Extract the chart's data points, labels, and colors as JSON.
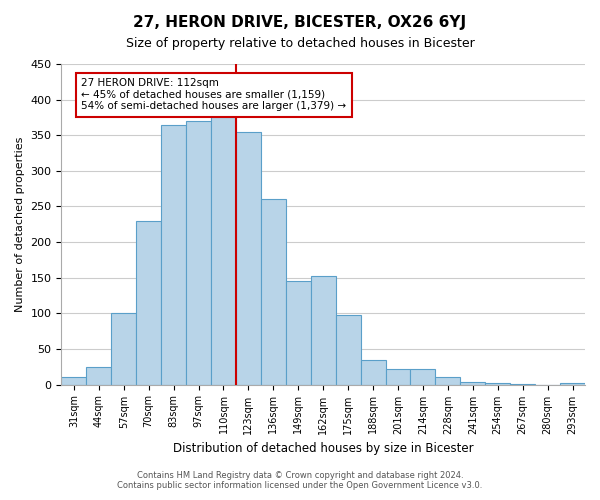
{
  "title": "27, HERON DRIVE, BICESTER, OX26 6YJ",
  "subtitle": "Size of property relative to detached houses in Bicester",
  "xlabel": "Distribution of detached houses by size in Bicester",
  "ylabel": "Number of detached properties",
  "footer_line1": "Contains HM Land Registry data © Crown copyright and database right 2024.",
  "footer_line2": "Contains public sector information licensed under the Open Government Licence v3.0.",
  "bin_labels": [
    "31sqm",
    "44sqm",
    "57sqm",
    "70sqm",
    "83sqm",
    "97sqm",
    "110sqm",
    "123sqm",
    "136sqm",
    "149sqm",
    "162sqm",
    "175sqm",
    "188sqm",
    "201sqm",
    "214sqm",
    "228sqm",
    "241sqm",
    "254sqm",
    "267sqm",
    "280sqm",
    "293sqm"
  ],
  "bar_values": [
    10,
    25,
    100,
    230,
    365,
    370,
    375,
    355,
    260,
    145,
    152,
    97,
    35,
    22,
    22,
    10,
    3,
    2,
    1,
    0,
    2
  ],
  "ylim": [
    0,
    450
  ],
  "yticks": [
    0,
    50,
    100,
    150,
    200,
    250,
    300,
    350,
    400,
    450
  ],
  "property_line_bin_index": 6,
  "bar_color": "#b8d4e8",
  "bar_edge_color": "#5a9fc9",
  "property_line_color": "#cc0000",
  "annotation_box_color": "#cc0000",
  "annotation_text_line1": "27 HERON DRIVE: 112sqm",
  "annotation_text_line2": "← 45% of detached houses are smaller (1,159)",
  "annotation_text_line3": "54% of semi-detached houses are larger (1,379) →",
  "background_color": "#ffffff",
  "grid_color": "#cccccc"
}
